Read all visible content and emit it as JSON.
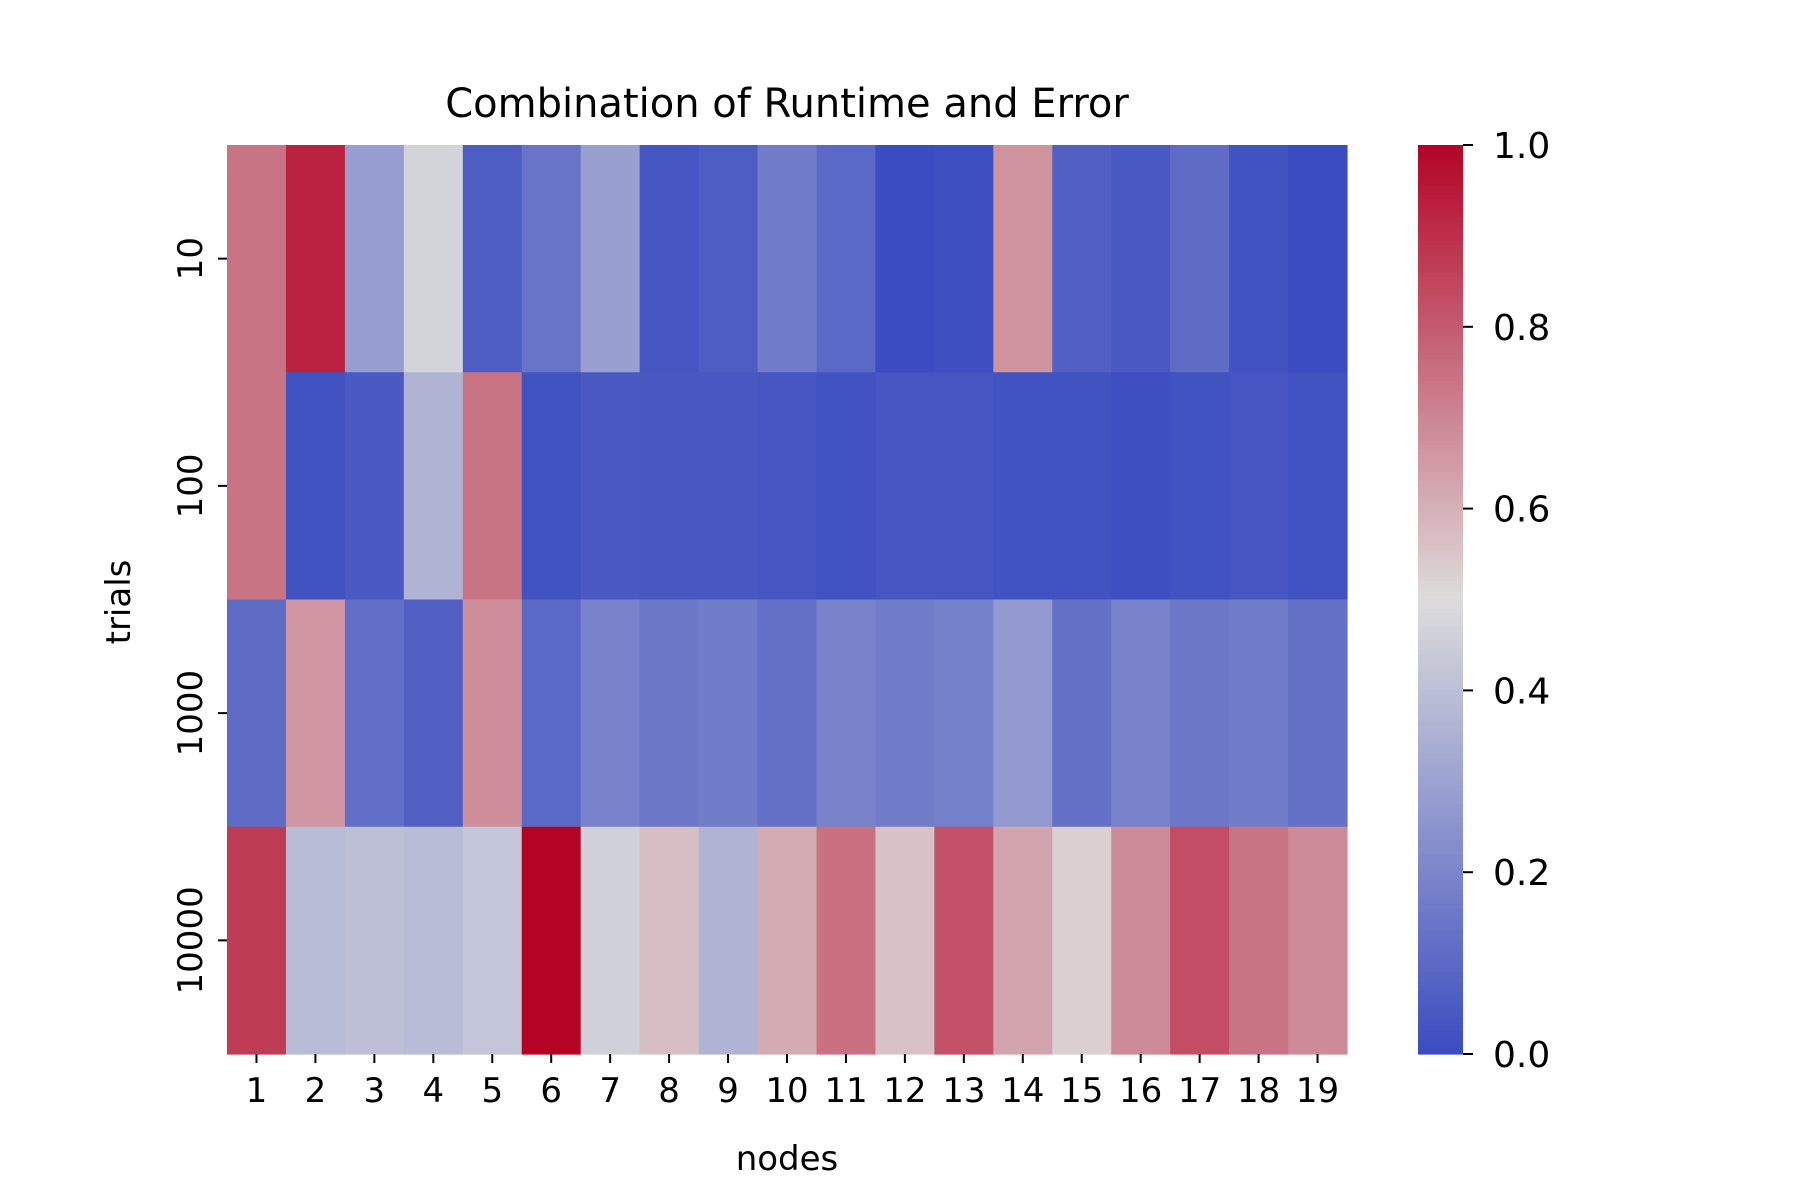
{
  "chart_data": {
    "type": "heatmap",
    "title": "Combination of Runtime and Error",
    "xlabel": "nodes",
    "ylabel": "trials",
    "x_categories": [
      "1",
      "2",
      "3",
      "4",
      "5",
      "6",
      "7",
      "8",
      "9",
      "10",
      "11",
      "12",
      "13",
      "14",
      "15",
      "16",
      "17",
      "18",
      "19"
    ],
    "y_categories": [
      "10",
      "100",
      "1000",
      "10000"
    ],
    "values": [
      [
        0.74,
        0.93,
        0.28,
        0.47,
        0.06,
        0.14,
        0.29,
        0.03,
        0.06,
        0.17,
        0.1,
        0.0,
        0.01,
        0.67,
        0.07,
        0.05,
        0.11,
        0.02,
        0.0
      ],
      [
        0.74,
        0.02,
        0.05,
        0.36,
        0.74,
        0.02,
        0.05,
        0.04,
        0.04,
        0.03,
        0.02,
        0.03,
        0.03,
        0.02,
        0.02,
        0.01,
        0.02,
        0.03,
        0.02
      ],
      [
        0.11,
        0.66,
        0.12,
        0.07,
        0.68,
        0.1,
        0.19,
        0.15,
        0.17,
        0.13,
        0.19,
        0.17,
        0.18,
        0.27,
        0.13,
        0.19,
        0.15,
        0.17,
        0.13
      ],
      [
        0.87,
        0.39,
        0.4,
        0.39,
        0.42,
        1.0,
        0.46,
        0.57,
        0.36,
        0.61,
        0.75,
        0.56,
        0.82,
        0.63,
        0.53,
        0.69,
        0.83,
        0.74,
        0.69
      ]
    ],
    "vmin": 0.0,
    "vmax": 1.0,
    "colormap": "coolwarm",
    "colormap_stops": [
      "#3b4cc0",
      "#dddcdc",
      "#b40426"
    ],
    "colorbar": {
      "ticks": [
        0.0,
        0.2,
        0.4,
        0.6,
        0.8,
        1.0
      ],
      "tick_labels": [
        "0.0",
        "0.2",
        "0.4",
        "0.6",
        "0.8",
        "1.0"
      ]
    }
  }
}
